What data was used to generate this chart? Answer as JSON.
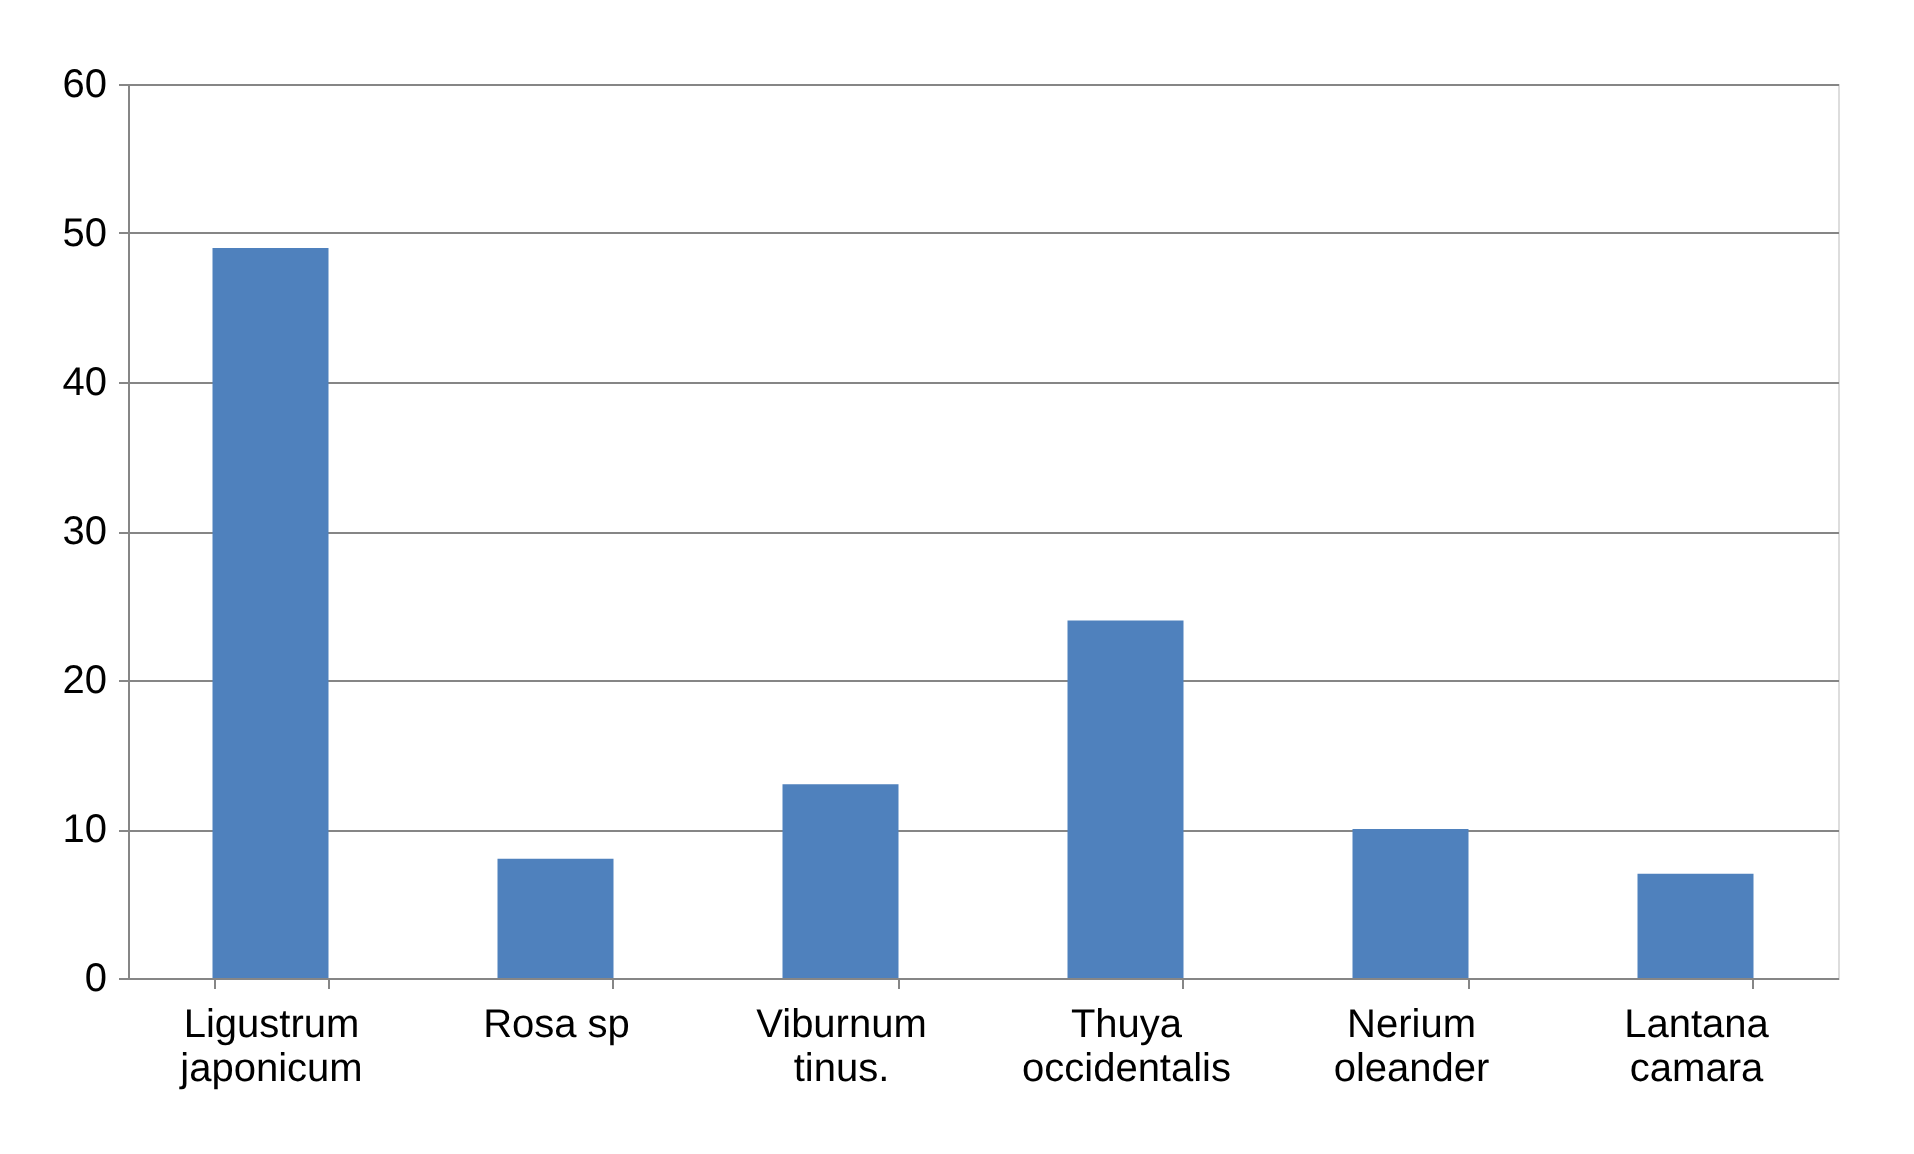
{
  "chart_data": {
    "type": "bar",
    "categories": [
      "Ligustrum\njaponicum",
      "Rosa sp",
      "Viburnum\ntinus.",
      "Thuya\noccidentalis",
      "Nerium\noleander",
      "Lantana\ncamara"
    ],
    "values": [
      49,
      8,
      13,
      24,
      10,
      7
    ],
    "color": "#4f81bd",
    "ylim": [
      0,
      60
    ],
    "yticks": [
      0,
      10,
      20,
      30,
      40,
      50,
      60
    ],
    "grid": "y"
  }
}
